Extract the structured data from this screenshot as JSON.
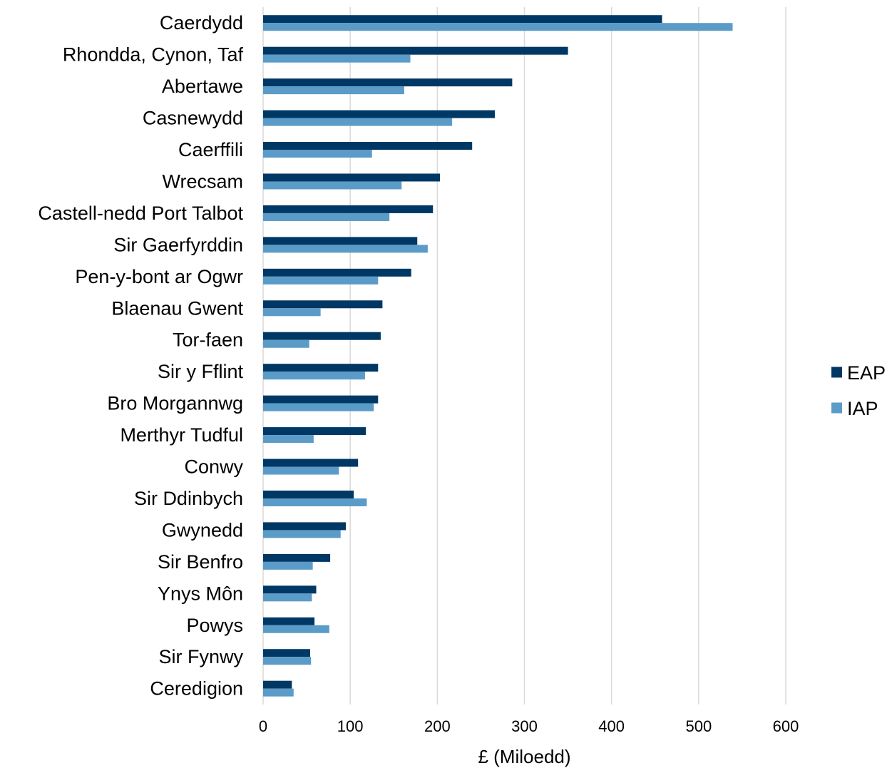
{
  "chart_data": {
    "type": "bar",
    "orientation": "horizontal",
    "categories": [
      "Caerdydd",
      "Rhondda, Cynon, Taf",
      "Abertawe",
      "Casnewydd",
      "Caerffili",
      "Wrecsam",
      "Castell-nedd Port Talbot",
      "Sir Gaerfyrddin",
      "Pen-y-bont ar Ogwr",
      "Blaenau Gwent",
      "Tor-faen",
      "Sir y Fflint",
      "Bro Morgannwg",
      "Merthyr Tudful",
      "Conwy",
      "Sir Ddinbych",
      "Gwynedd",
      "Sir Benfro",
      "Ynys Môn",
      "Powys",
      "Sir Fynwy",
      "Ceredigion"
    ],
    "series": [
      {
        "name": "EAP",
        "color": "#003865",
        "values": [
          458,
          350,
          286,
          266,
          240,
          203,
          195,
          177,
          170,
          137,
          135,
          132,
          132,
          118,
          109,
          104,
          95,
          77,
          61,
          59,
          54,
          33
        ]
      },
      {
        "name": "IAP",
        "color": "#5b9bc8",
        "values": [
          539,
          169,
          162,
          217,
          125,
          159,
          145,
          189,
          132,
          66,
          53,
          117,
          127,
          58,
          87,
          119,
          89,
          57,
          56,
          76,
          55,
          35
        ]
      }
    ],
    "xlabel": "£ (Miloedd)",
    "ylabel": "",
    "title": "",
    "xlim": [
      0,
      600
    ],
    "xticks": [
      "0",
      "100",
      "200",
      "300",
      "400",
      "500",
      "600"
    ],
    "grid": "vertical",
    "legend": "right"
  }
}
